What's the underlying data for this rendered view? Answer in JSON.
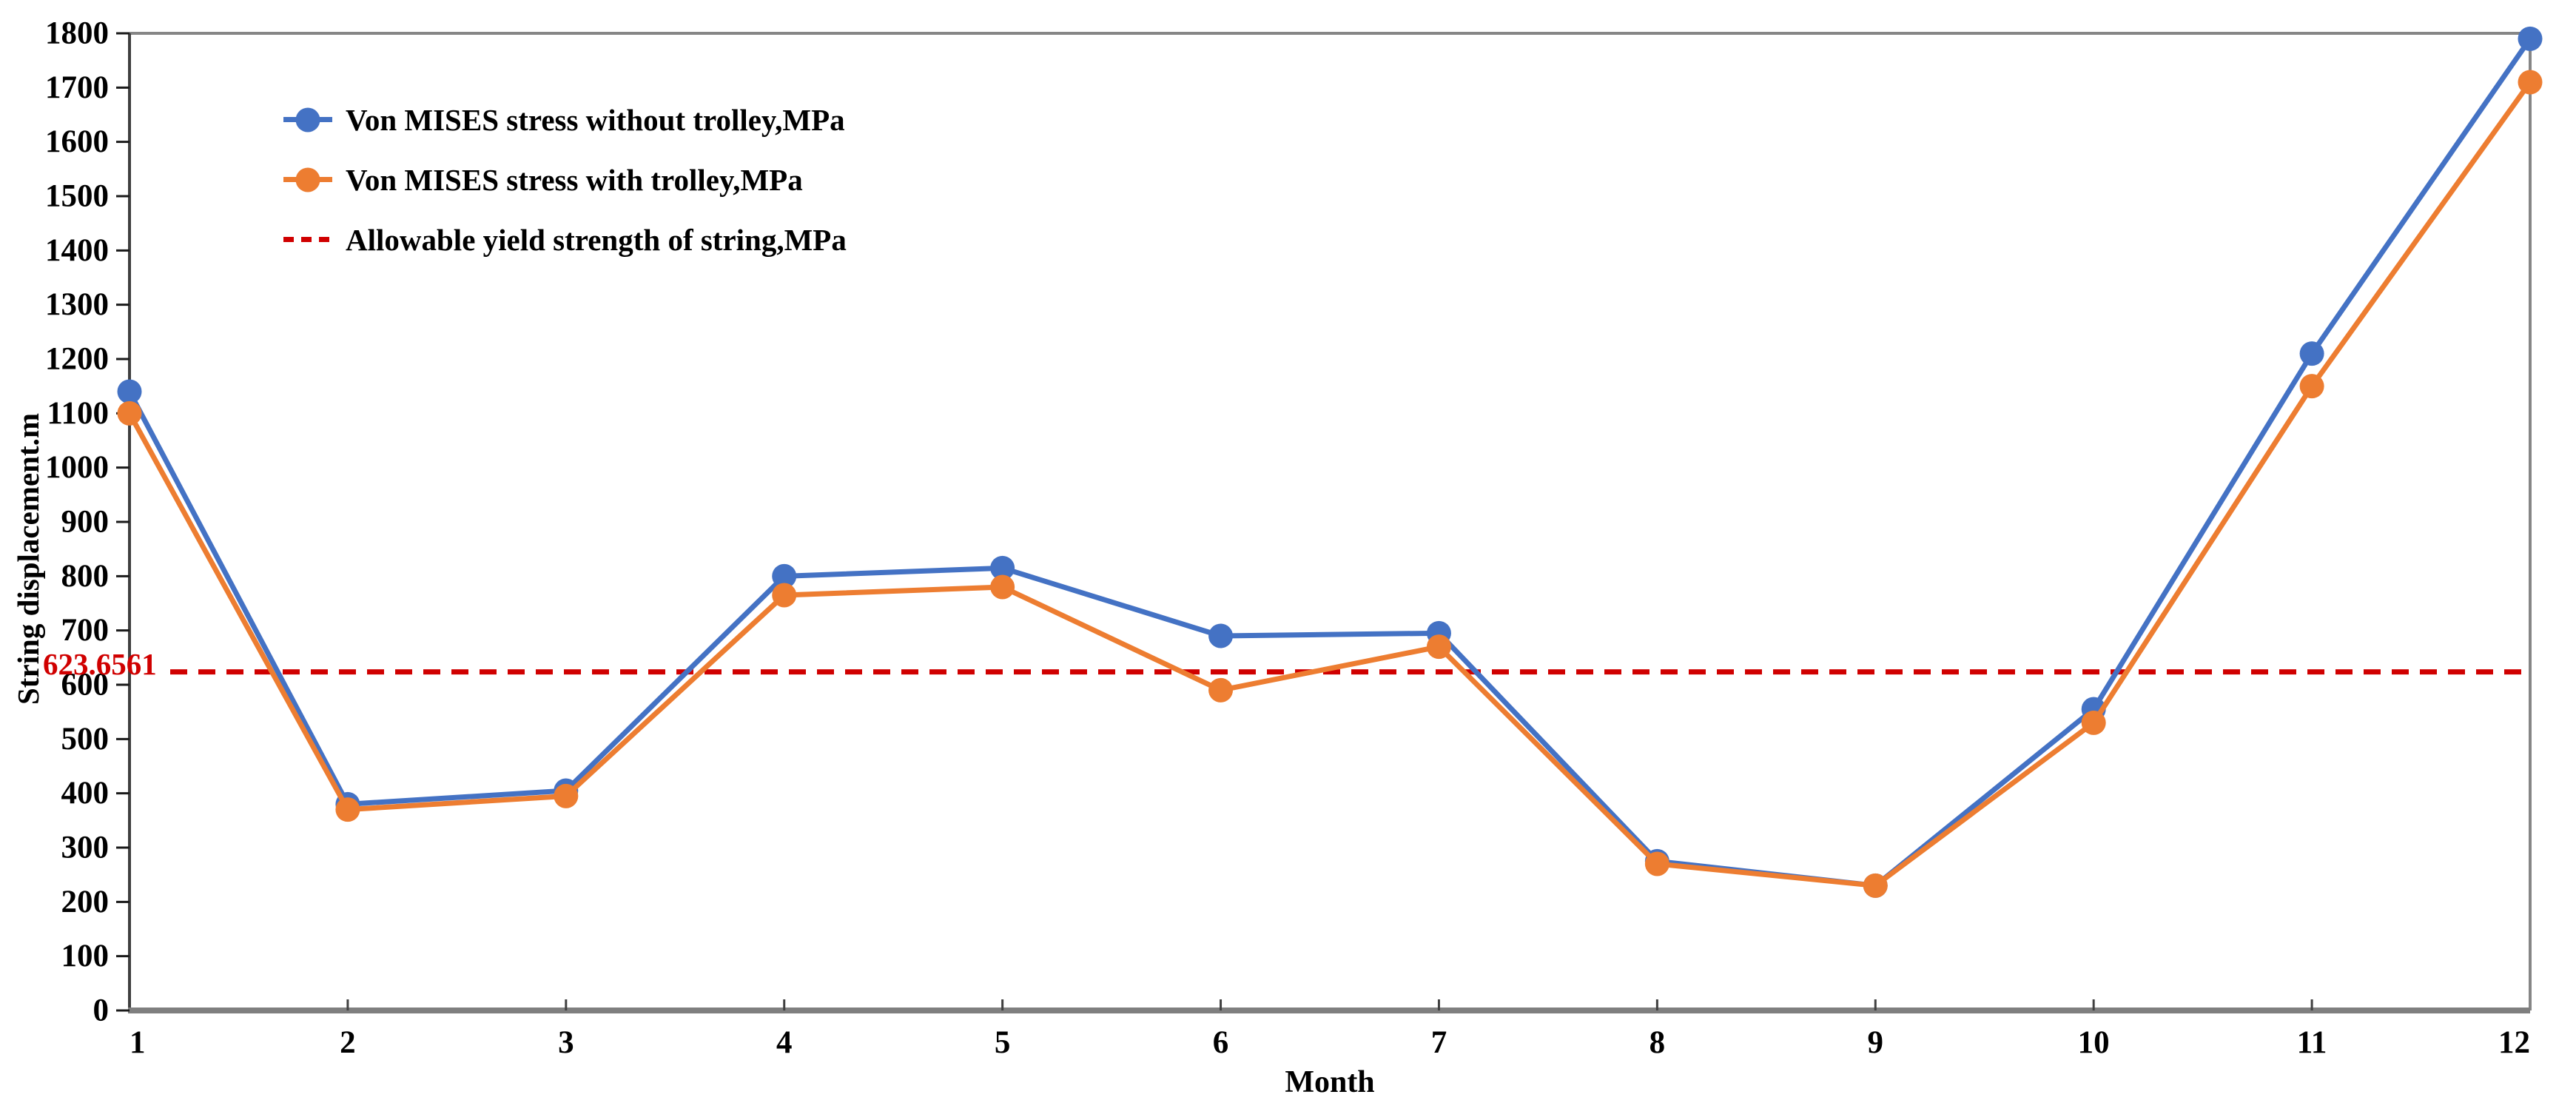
{
  "chart_data": {
    "type": "line",
    "categories": [
      "1",
      "2",
      "3",
      "4",
      "5",
      "6",
      "7",
      "8",
      "9",
      "10",
      "11",
      "12"
    ],
    "series": [
      {
        "name": "Von MISES stress without trolley,MPa",
        "color": "#4472C4",
        "values": [
          1140,
          380,
          405,
          800,
          815,
          690,
          695,
          275,
          230,
          555,
          1210,
          1790
        ]
      },
      {
        "name": "Von MISES stress with trolley,MPa",
        "color": "#ED7D31",
        "values": [
          1100,
          370,
          395,
          765,
          780,
          590,
          670,
          270,
          230,
          530,
          1150,
          1710
        ]
      }
    ],
    "threshold": {
      "name": "Allowable yield strength of string,MPa",
      "value": 623.6561,
      "label": "623.6561",
      "color": "#d00000",
      "style": "dashed"
    },
    "xlabel": "Month",
    "ylabel": "String displacement.m",
    "ylim": [
      0,
      1800
    ],
    "ytick_step": 100,
    "legend_position": "top-left-inside",
    "grid": false
  }
}
